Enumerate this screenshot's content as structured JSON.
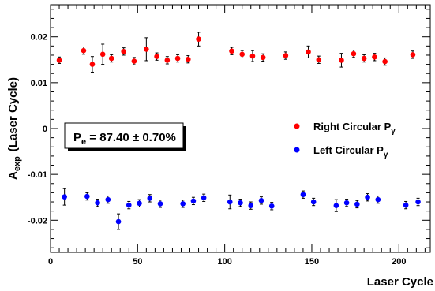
{
  "chart_data": {
    "type": "scatter",
    "title": "",
    "xlabel": "Laser Cycle",
    "ylabel_main": "A",
    "ylabel_sub": "exp",
    "ylabel_rest": "(Laser Cycle)",
    "xlim": [
      0,
      218
    ],
    "ylim": [
      -0.027,
      0.027
    ],
    "x_ticks": [
      0,
      50,
      100,
      150,
      200
    ],
    "x_tick_labels": [
      "0",
      "50",
      "100",
      "150",
      "200"
    ],
    "y_ticks": [
      0.02,
      0.01,
      0,
      -0.01,
      -0.02
    ],
    "y_tick_labels": [
      "0.02",
      "0.01",
      "0",
      "-0.01",
      "-0.02"
    ],
    "grid": false,
    "legend_position": "center-right",
    "annotation": {
      "main": "P",
      "sub": "e",
      "value": " = 87.40 ± 0.70%"
    },
    "series": [
      {
        "name_main": "Right Circular P",
        "name_sub": "γ",
        "color": "#ff0000",
        "points": [
          {
            "x": 5,
            "y": 0.0149,
            "err": 0.0007
          },
          {
            "x": 19,
            "y": 0.017,
            "err": 0.0008
          },
          {
            "x": 24,
            "y": 0.014,
            "err": 0.0017
          },
          {
            "x": 30,
            "y": 0.0162,
            "err": 0.0022
          },
          {
            "x": 35,
            "y": 0.0153,
            "err": 0.0008
          },
          {
            "x": 42,
            "y": 0.0168,
            "err": 0.0008
          },
          {
            "x": 48,
            "y": 0.0147,
            "err": 0.0008
          },
          {
            "x": 55,
            "y": 0.0173,
            "err": 0.0025
          },
          {
            "x": 61,
            "y": 0.0157,
            "err": 0.0008
          },
          {
            "x": 67,
            "y": 0.0149,
            "err": 0.0008
          },
          {
            "x": 73,
            "y": 0.0153,
            "err": 0.0008
          },
          {
            "x": 79,
            "y": 0.0151,
            "err": 0.0008
          },
          {
            "x": 85,
            "y": 0.0195,
            "err": 0.0015
          },
          {
            "x": 104,
            "y": 0.0169,
            "err": 0.0008
          },
          {
            "x": 110,
            "y": 0.0162,
            "err": 0.0008
          },
          {
            "x": 116,
            "y": 0.0158,
            "err": 0.0012
          },
          {
            "x": 122,
            "y": 0.0155,
            "err": 0.0008
          },
          {
            "x": 135,
            "y": 0.0159,
            "err": 0.0008
          },
          {
            "x": 148,
            "y": 0.0167,
            "err": 0.0013
          },
          {
            "x": 154,
            "y": 0.015,
            "err": 0.0008
          },
          {
            "x": 167,
            "y": 0.0149,
            "err": 0.0015
          },
          {
            "x": 174,
            "y": 0.0163,
            "err": 0.0008
          },
          {
            "x": 180,
            "y": 0.0153,
            "err": 0.0008
          },
          {
            "x": 186,
            "y": 0.0156,
            "err": 0.0008
          },
          {
            "x": 192,
            "y": 0.0146,
            "err": 0.0008
          },
          {
            "x": 208,
            "y": 0.0161,
            "err": 0.0008
          }
        ]
      },
      {
        "name_main": "Left Circular P",
        "name_sub": "γ",
        "color": "#0000ff",
        "points": [
          {
            "x": 8,
            "y": -0.0149,
            "err": 0.0018
          },
          {
            "x": 21,
            "y": -0.0148,
            "err": 0.0008
          },
          {
            "x": 27,
            "y": -0.0162,
            "err": 0.0008
          },
          {
            "x": 33,
            "y": -0.0155,
            "err": 0.0008
          },
          {
            "x": 39,
            "y": -0.0203,
            "err": 0.0017
          },
          {
            "x": 45,
            "y": -0.0167,
            "err": 0.0008
          },
          {
            "x": 51,
            "y": -0.0163,
            "err": 0.0008
          },
          {
            "x": 57,
            "y": -0.0152,
            "err": 0.0008
          },
          {
            "x": 63,
            "y": -0.0164,
            "err": 0.0008
          },
          {
            "x": 76,
            "y": -0.0164,
            "err": 0.0008
          },
          {
            "x": 82,
            "y": -0.0158,
            "err": 0.0008
          },
          {
            "x": 88,
            "y": -0.0151,
            "err": 0.0008
          },
          {
            "x": 103,
            "y": -0.016,
            "err": 0.0015
          },
          {
            "x": 109,
            "y": -0.0162,
            "err": 0.0008
          },
          {
            "x": 115,
            "y": -0.0168,
            "err": 0.0008
          },
          {
            "x": 121,
            "y": -0.0157,
            "err": 0.0008
          },
          {
            "x": 127,
            "y": -0.0169,
            "err": 0.0008
          },
          {
            "x": 145,
            "y": -0.0144,
            "err": 0.0008
          },
          {
            "x": 151,
            "y": -0.016,
            "err": 0.0008
          },
          {
            "x": 164,
            "y": -0.0168,
            "err": 0.0013
          },
          {
            "x": 170,
            "y": -0.0162,
            "err": 0.0008
          },
          {
            "x": 176,
            "y": -0.0165,
            "err": 0.0008
          },
          {
            "x": 182,
            "y": -0.015,
            "err": 0.0008
          },
          {
            "x": 188,
            "y": -0.0155,
            "err": 0.0008
          },
          {
            "x": 204,
            "y": -0.0167,
            "err": 0.0008
          },
          {
            "x": 211,
            "y": -0.016,
            "err": 0.0008
          }
        ]
      }
    ]
  }
}
